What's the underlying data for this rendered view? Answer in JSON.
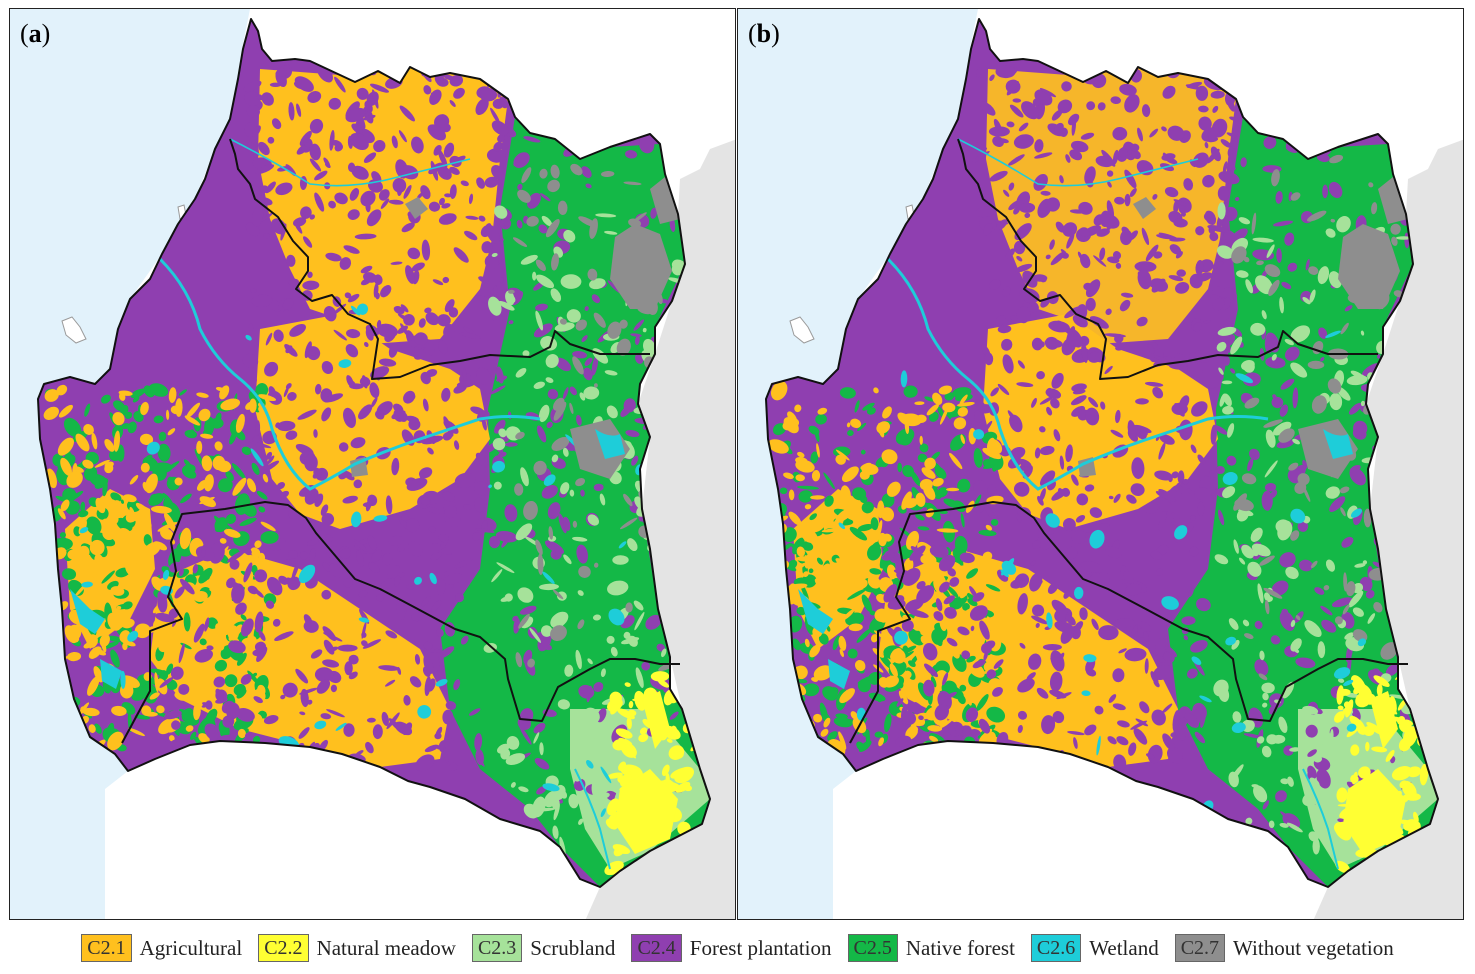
{
  "panels": [
    {
      "id": "a",
      "label_prefix": "(",
      "label_letter": "a",
      "label_suffix": ")"
    },
    {
      "id": "b",
      "label_prefix": "(",
      "label_letter": "b",
      "label_suffix": ")"
    }
  ],
  "colors": {
    "ocean": "#e2f2fb",
    "outside_land": "#e4e4e4",
    "coast_line": "#9a9a9a",
    "boundary": "#111111"
  },
  "legend": [
    {
      "code": "C2.1",
      "label": "Agricultural",
      "color": "#ffc01e"
    },
    {
      "code": "C2.2",
      "label": "Natural meadow",
      "color": "#ffff33"
    },
    {
      "code": "C2.3",
      "label": "Scrubland",
      "color": "#a6e29a"
    },
    {
      "code": "C2.4",
      "label": "Forest plantation",
      "color": "#8f3fb0"
    },
    {
      "code": "C2.5",
      "label": "Native forest",
      "color": "#14b847"
    },
    {
      "code": "C2.6",
      "label": "Wetland",
      "color": "#1ecdd9"
    },
    {
      "code": "C2.7",
      "label": "Without vegetation",
      "color": "#8e8e8e"
    }
  ]
}
